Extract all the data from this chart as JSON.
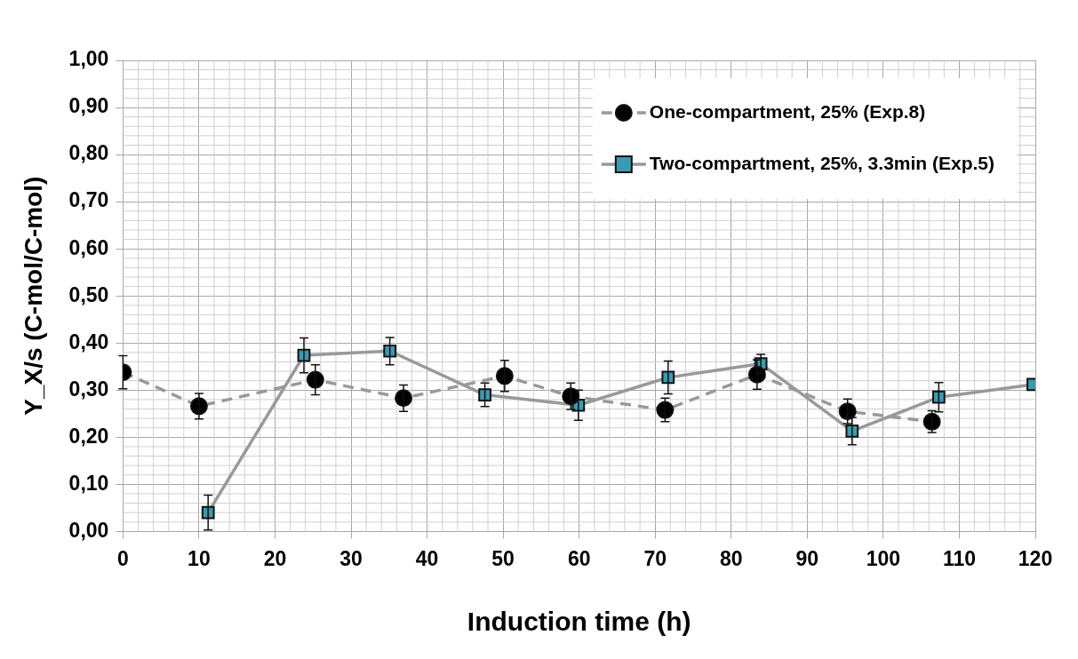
{
  "chart_data": {
    "type": "line",
    "xlabel": "Induction time (h)",
    "ylabel": "Y_X/s (C-mol/C-mol)",
    "xlim": [
      0,
      120
    ],
    "xticks": [
      0,
      10,
      20,
      30,
      40,
      50,
      60,
      70,
      80,
      90,
      100,
      110,
      120
    ],
    "ylim": [
      0,
      1
    ],
    "yticks": [
      {
        "value": 0,
        "label": "0,00"
      },
      {
        "value": 0.1,
        "label": "0,10"
      },
      {
        "value": 0.2,
        "label": "0,20"
      },
      {
        "value": 0.3,
        "label": "0,30"
      },
      {
        "value": 0.4,
        "label": "0,40"
      },
      {
        "value": 0.5,
        "label": "0,50"
      },
      {
        "value": 0.6,
        "label": "0,60"
      },
      {
        "value": 0.7,
        "label": "0,70"
      },
      {
        "value": 0.8,
        "label": "0,80"
      },
      {
        "value": 0.9,
        "label": "0,90"
      },
      {
        "value": 1,
        "label": "1,00"
      }
    ],
    "grid": true,
    "legend": "top right",
    "series": [
      {
        "name": "One-compartment, 25% (Exp.8)",
        "color": "#000000",
        "marker": "circle",
        "line_style": "dashed",
        "x": [
          0,
          10,
          25.3,
          36.9,
          50.2,
          58.9,
          71.3,
          83.4,
          95.3,
          106.4
        ],
        "values": [
          0.338,
          0.266,
          0.322,
          0.283,
          0.33,
          0.287,
          0.258,
          0.333,
          0.255,
          0.233
        ],
        "errors": [
          0.035,
          0.027,
          0.032,
          0.028,
          0.033,
          0.028,
          0.025,
          0.031,
          0.026,
          0.023
        ]
      },
      {
        "name": "Two-compartment, 25%, 3.3min (Exp.5)",
        "color": "#3a9bb0",
        "marker": "square",
        "line_style": "solid",
        "x": [
          11.2,
          23.8,
          35.1,
          47.6,
          59.9,
          71.7,
          83.9,
          95.9,
          107.3,
          119.7
        ],
        "values": [
          0.04,
          0.374,
          0.383,
          0.29,
          0.268,
          0.327,
          0.356,
          0.213,
          0.285,
          0.312
        ],
        "errors": [
          0.037,
          0.037,
          0.029,
          0.025,
          0.032,
          0.035,
          0.02,
          0.029,
          0.031,
          null
        ]
      }
    ]
  }
}
